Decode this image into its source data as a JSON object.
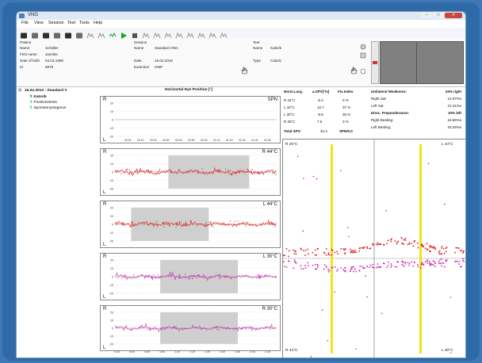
{
  "app": {
    "title": "VNG",
    "menu": [
      "File",
      "View",
      "Session",
      "Test",
      "Tools",
      "Help"
    ],
    "window_buttons": {
      "minimize": "–",
      "maximize": "□",
      "close": "✕"
    }
  },
  "toolbar": {
    "icons": [
      "new-icon",
      "open-icon",
      "patient-icon",
      "save-icon",
      "save-as-icon",
      "print-icon",
      "calibrate-icon",
      "marker-icon",
      "record-icon",
      "play-icon",
      "stop-icon",
      "crosshair-icon",
      "waveform-icon",
      "spectrum-icon",
      "analysis-icon",
      "settings-icon",
      "nystagmus-icon",
      "eye-icon",
      "rotate-icon"
    ],
    "play_color": "#1aa31a"
  },
  "patient": {
    "header": "Patient",
    "name_label": "Name",
    "name": "Schüller",
    "first_label": "First name",
    "first": "Jannike",
    "dob_label": "Date of birth",
    "dob": "04.03.1998",
    "id_label": "Id",
    "id": "6879"
  },
  "session": {
    "header": "Session",
    "name_label": "Name",
    "name": "Standard VNG",
    "date_label": "Date",
    "date": "16.02.2010",
    "examiner_label": "Examiner",
    "examiner": "HMP"
  },
  "test": {
    "header": "Test",
    "name_label": "Name",
    "name": "Kalorik",
    "type_label": "Type",
    "type": "Caloric"
  },
  "tree": {
    "root": "16.02.2010 : Standard V",
    "items": [
      "Kalorik",
      "Positionstests",
      "Spontannystagmus"
    ]
  },
  "plots": {
    "title": "Horizontal Eye Position [°]",
    "panels": [
      {
        "left": "R",
        "right": "SPN",
        "bottom_left": "L",
        "color": "#3355cc",
        "stim": [
          0,
          0
        ],
        "amp": 0
      },
      {
        "left": "R",
        "right": "R 44°C",
        "bottom_left": "L",
        "color": "#e02020",
        "stim": [
          0.33,
          0.83
        ],
        "amp": 1
      },
      {
        "left": "R",
        "right": "L 44°C",
        "bottom_left": "L",
        "color": "#e02020",
        "stim": [
          0.1,
          0.58
        ],
        "amp": 1
      },
      {
        "left": "R",
        "right": "L 30°C",
        "bottom_left": "L",
        "color": "#cc2bb0",
        "stim": [
          0.28,
          0.76
        ],
        "amp": 0.7
      },
      {
        "left": "R",
        "right": "R 30°C",
        "bottom_left": "L",
        "color": "#cc2bb0",
        "stim": [
          0.28,
          0.76
        ],
        "amp": 0.6
      }
    ],
    "y_ticks": [
      "20",
      "10",
      "0",
      "-10",
      "-20"
    ],
    "x_ticks_top": [
      "00:00",
      "00:10",
      "00:20",
      "00:30",
      "00:40",
      "00:50",
      "01:00",
      "01:10",
      "01:20",
      "01:30",
      "01:40",
      "01:50"
    ],
    "x_ticks_bottom": [
      "0:30",
      "0:40",
      "0:50",
      "1:00",
      "1:10",
      "1:20",
      "1:30",
      "1:40",
      "1:50",
      "2:00",
      "2:10"
    ]
  },
  "stats": {
    "headers": [
      "Norm.Larg.",
      "a.SPV[°/s]",
      "Fix.Index"
    ],
    "rows": [
      {
        "label": "R 44°C",
        "spv": "-5.4",
        "fix": "0 %"
      },
      {
        "label": "L 44°C",
        "spv": "12.7",
        "fix": "37 %"
      },
      {
        "label": "L 30°C",
        "spv": "-8.8",
        "fix": "38 %"
      },
      {
        "label": "R 30°C",
        "spv": "7.5",
        "fix": "0 %"
      }
    ],
    "total_label": "Total SPV:",
    "total_value": "34.3",
    "total_fix": "SPN/0.0",
    "right": [
      {
        "label": "Unilateral Weakness:",
        "value": "24% right",
        "bold": true
      },
      {
        "label": "Right Sat:",
        "value": "12.97%s",
        "bold": false
      },
      {
        "label": "Left Sat:",
        "value": "21.31%s",
        "bold": false
      },
      {
        "label": "Direc. Preponderance:",
        "value": "10% left",
        "bold": true
      },
      {
        "label": "Right Beating:",
        "value": "16.66%s",
        "bold": false
      },
      {
        "label": "Left Beating:",
        "value": "20.26%s",
        "bold": false
      }
    ]
  },
  "quad": {
    "labels": [
      "R 30°C",
      "L 44°C",
      "R 44°C",
      "L 30°C"
    ],
    "line_color": "#f2e21b"
  }
}
